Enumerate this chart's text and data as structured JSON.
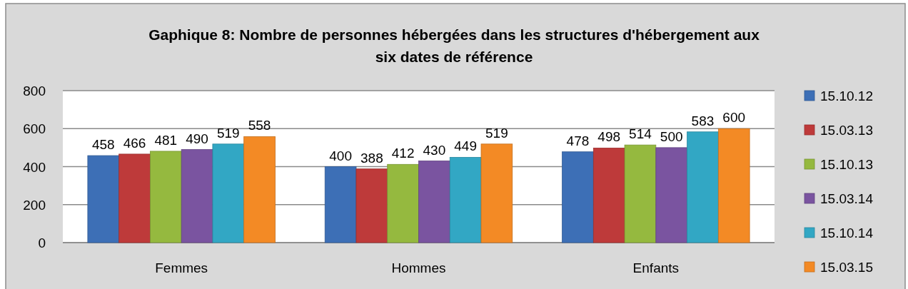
{
  "chart_data": {
    "type": "bar",
    "title": "Gaphique 8: Nombre de personnes hébergées dans les structures d'hébergement aux six dates de référence",
    "categories": [
      "Femmes",
      "Hommes",
      "Enfants"
    ],
    "series": [
      {
        "name": "15.10.12",
        "color": "#3d6fb6",
        "values": [
          458,
          400,
          478
        ]
      },
      {
        "name": "15.03.13",
        "color": "#be3a3a",
        "values": [
          466,
          388,
          498
        ]
      },
      {
        "name": "15.10.13",
        "color": "#95b93f",
        "values": [
          481,
          412,
          514
        ]
      },
      {
        "name": "15.03.14",
        "color": "#7a54a0",
        "values": [
          490,
          430,
          500
        ]
      },
      {
        "name": "15.10.14",
        "color": "#32a7c4",
        "values": [
          519,
          449,
          583
        ]
      },
      {
        "name": "15.03.15",
        "color": "#f38a25",
        "values": [
          558,
          519,
          600
        ]
      }
    ],
    "ylim": [
      0,
      800
    ],
    "yticks": [
      0,
      200,
      400,
      600,
      800
    ],
    "grid": "y",
    "legend": "right",
    "data_labels": true
  }
}
